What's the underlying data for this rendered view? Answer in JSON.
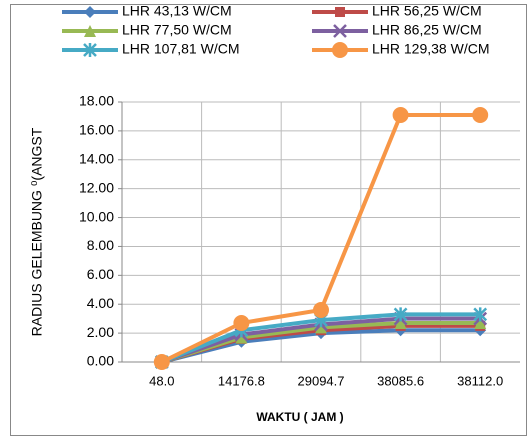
{
  "chart_data": {
    "type": "line",
    "xlabel": "WAKTU ( JAM )",
    "ylabel": "RADIUS GELEMBUNG ⁰(ANGST",
    "categories": [
      "48.0",
      "14176.8",
      "29094.7",
      "38085.6",
      "38112.0"
    ],
    "series": [
      {
        "name": "LHR 43,13 W/CM",
        "color": "#4a7ebb",
        "marker": "diamond",
        "values": [
          0,
          1.4,
          2.0,
          2.2,
          2.2
        ]
      },
      {
        "name": "LHR 56,25 W/CM",
        "color": "#be4b48",
        "marker": "square",
        "values": [
          0,
          1.6,
          2.2,
          2.5,
          2.5
        ]
      },
      {
        "name": "LHR 77,50 W/CM",
        "color": "#98b954",
        "marker": "triangle",
        "values": [
          0,
          1.7,
          2.4,
          2.7,
          2.7
        ]
      },
      {
        "name": "LHR 86,25 W/CM",
        "color": "#7d60a0",
        "marker": "x",
        "values": [
          0,
          1.9,
          2.6,
          3.0,
          3.0
        ]
      },
      {
        "name": "LHR 107,81 W/CM",
        "color": "#46aac5",
        "marker": "star",
        "values": [
          0,
          2.2,
          2.9,
          3.3,
          3.3
        ]
      },
      {
        "name": "LHR 129,38 W/CM",
        "color": "#f79646",
        "marker": "circle",
        "values": [
          0,
          2.7,
          3.6,
          17.1,
          17.1
        ]
      }
    ],
    "ylim": [
      0,
      18
    ],
    "yticks": [
      {
        "value": 0,
        "label": "0.00"
      },
      {
        "value": 2,
        "label": "2.00"
      },
      {
        "value": 4,
        "label": "4.00"
      },
      {
        "value": 6,
        "label": "6.00"
      },
      {
        "value": 8,
        "label": "8.00"
      },
      {
        "value": 10,
        "label": "10.00"
      },
      {
        "value": 12,
        "label": "12.00"
      },
      {
        "value": 14,
        "label": "14.00"
      },
      {
        "value": 16,
        "label": "16.00"
      },
      {
        "value": 18,
        "label": "18.00"
      }
    ],
    "grid": true,
    "legend": "top"
  }
}
